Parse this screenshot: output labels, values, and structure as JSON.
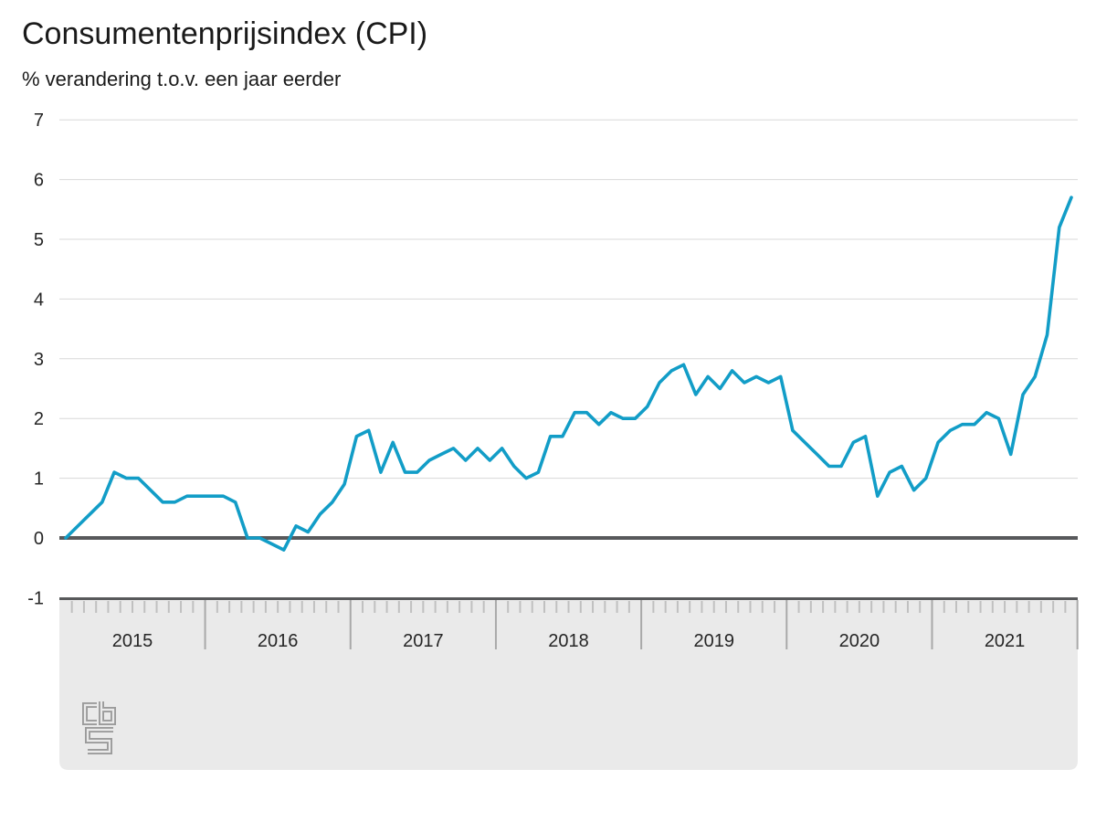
{
  "header": {
    "title": "Consumentenprijsindex (CPI)",
    "subtitle": "% verandering t.o.v. een jaar eerder"
  },
  "logo": {
    "label": "CBS"
  },
  "chart_data": {
    "type": "line",
    "title": "Consumentenprijsindex (CPI)",
    "subtitle": "% verandering t.o.v. een jaar eerder",
    "xlabel": "",
    "ylabel": "% verandering t.o.v. een jaar eerder",
    "unit": "%",
    "frequency": "monthly",
    "x_start": "2015-01",
    "x_end": "2021-12",
    "x_year_labels": [
      "2015",
      "2016",
      "2017",
      "2018",
      "2019",
      "2020",
      "2021"
    ],
    "ylim": [
      -1,
      7
    ],
    "yticks": [
      7,
      6,
      5,
      4,
      3,
      2,
      1,
      0,
      -1
    ],
    "grid": "horizontal",
    "legend": "none",
    "baseline": 0,
    "series": [
      {
        "name": "CPI % verandering t.o.v. een jaar eerder",
        "values": [
          0.0,
          0.2,
          0.4,
          0.6,
          1.1,
          1.0,
          1.0,
          0.8,
          0.6,
          0.6,
          0.7,
          0.7,
          0.7,
          0.7,
          0.6,
          0.0,
          0.0,
          -0.1,
          -0.2,
          0.2,
          0.1,
          0.4,
          0.6,
          0.9,
          1.7,
          1.8,
          1.1,
          1.6,
          1.1,
          1.1,
          1.3,
          1.4,
          1.5,
          1.3,
          1.5,
          1.3,
          1.5,
          1.2,
          1.0,
          1.1,
          1.7,
          1.7,
          2.1,
          2.1,
          1.9,
          2.1,
          2.0,
          2.0,
          2.2,
          2.6,
          2.8,
          2.9,
          2.4,
          2.7,
          2.5,
          2.8,
          2.6,
          2.7,
          2.6,
          2.7,
          1.8,
          1.6,
          1.4,
          1.2,
          1.2,
          1.6,
          1.7,
          0.7,
          1.1,
          1.2,
          0.8,
          1.0,
          1.6,
          1.8,
          1.9,
          1.9,
          2.1,
          2.0,
          1.4,
          2.4,
          2.7,
          3.4,
          5.2,
          5.7
        ]
      }
    ],
    "colors": {
      "line": "#129dc7",
      "zero_line": "#58595b",
      "gridline": "#d8d8d8",
      "axis_band_bg": "#eaeaea",
      "axis_band_border": "#58595b",
      "month_tick": "#c0c0c0",
      "year_divider": "#a9a9a9",
      "axis_label": "#262626",
      "logo": "#9b9b9b"
    }
  }
}
